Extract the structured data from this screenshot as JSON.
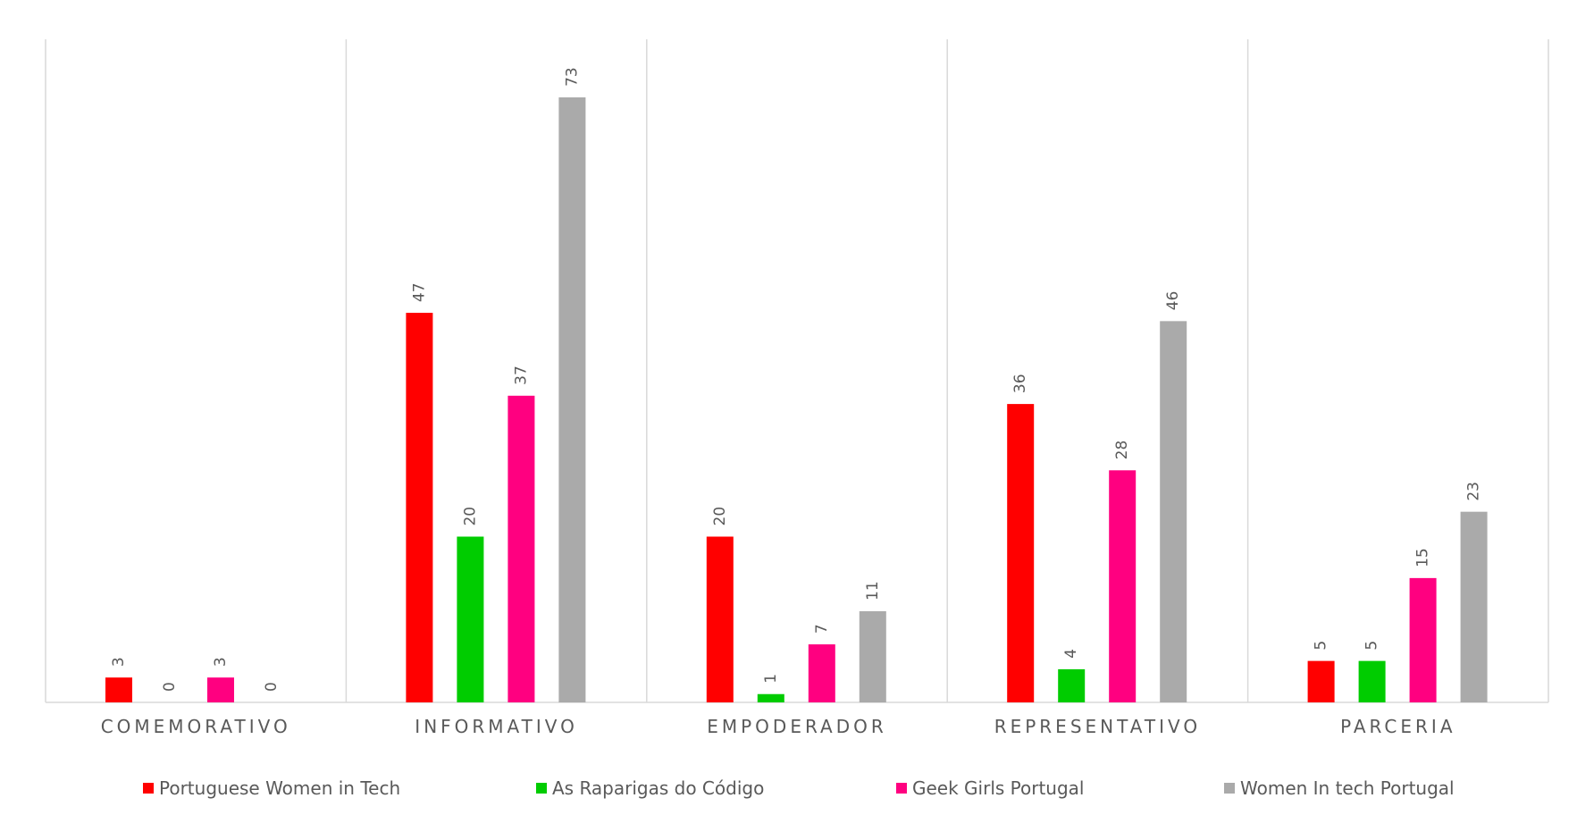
{
  "chart_data": {
    "type": "bar",
    "categories": [
      "COMEMORATIVO",
      "INFORMATIVO",
      "EMPODERADOR",
      "REPRESENTATIVO",
      "PARCERIA"
    ],
    "series": [
      {
        "name": "Portuguese Women in Tech",
        "color": "#ff0000",
        "values": [
          3,
          47,
          20,
          36,
          5
        ]
      },
      {
        "name": "As Raparigas do Código",
        "color": "#00cc00",
        "values": [
          0,
          20,
          1,
          4,
          5
        ]
      },
      {
        "name": "Geek Girls Portugal",
        "color": "#ff0080",
        "values": [
          3,
          37,
          7,
          28,
          15
        ]
      },
      {
        "name": "Women In tech Portugal",
        "color": "#aaaaaa",
        "values": [
          0,
          73,
          11,
          46,
          23
        ]
      }
    ],
    "ylim": [
      0,
      80
    ],
    "grid": false,
    "legend": "bottom",
    "data_labels": true
  }
}
